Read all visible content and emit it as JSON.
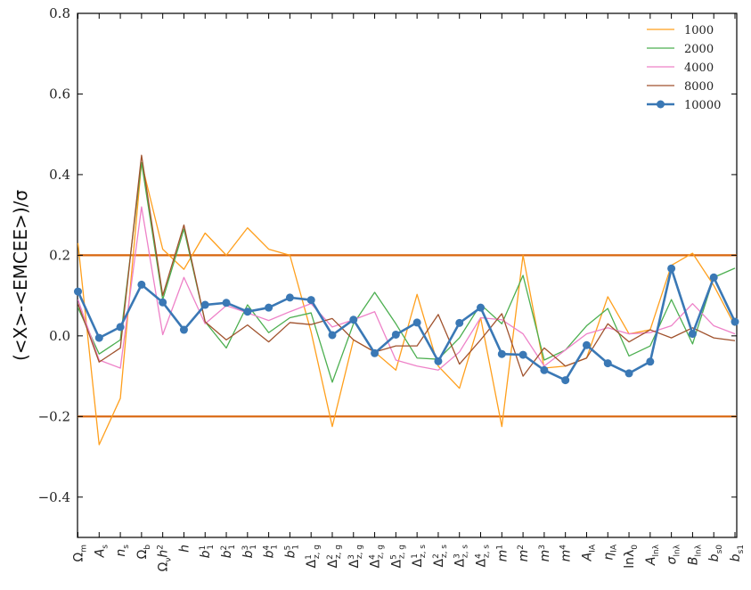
{
  "chart_data": {
    "type": "line",
    "ylabel": "(<X>-<EMCEE>)/σ",
    "ylim": [
      -0.5,
      0.8
    ],
    "yticks": [
      -0.4,
      -0.2,
      0.0,
      0.2,
      0.4,
      0.6,
      0.8
    ],
    "ytick_labels": [
      "−0.4",
      "−0.2",
      "0.0",
      "0.2",
      "0.4",
      "0.6",
      "0.8"
    ],
    "legend_position": "top-right",
    "categories": [
      {
        "base": "Ω",
        "sub": "m",
        "sup": ""
      },
      {
        "base": "A",
        "sub": "s",
        "sup": ""
      },
      {
        "base": "n",
        "sub": "s",
        "sup": ""
      },
      {
        "base": "Ω",
        "sub": "b",
        "sup": ""
      },
      {
        "base": "Ω",
        "sub": "ν",
        "sup": "",
        "suffix": "h",
        "suffix_sup": "2"
      },
      {
        "base": "h",
        "sub": "",
        "sup": ""
      },
      {
        "base": "b",
        "sub": "1",
        "sup": "1"
      },
      {
        "base": "b",
        "sub": "1",
        "sup": "2"
      },
      {
        "base": "b",
        "sub": "1",
        "sup": "3"
      },
      {
        "base": "b",
        "sub": "1",
        "sup": "4"
      },
      {
        "base": "b",
        "sub": "1",
        "sup": "5"
      },
      {
        "base": "Δ",
        "sub": "z, g",
        "sup": "1"
      },
      {
        "base": "Δ",
        "sub": "z, g",
        "sup": "2"
      },
      {
        "base": "Δ",
        "sub": "z, g",
        "sup": "3"
      },
      {
        "base": "Δ",
        "sub": "z, g",
        "sup": "4"
      },
      {
        "base": "Δ",
        "sub": "z, g",
        "sup": "5"
      },
      {
        "base": "Δ",
        "sub": "z, s",
        "sup": "1"
      },
      {
        "base": "Δ",
        "sub": "z, s",
        "sup": "2"
      },
      {
        "base": "Δ",
        "sub": "z, s",
        "sup": "3"
      },
      {
        "base": "Δ",
        "sub": "z, s",
        "sup": "4"
      },
      {
        "base": "m",
        "sub": "",
        "sup": "1"
      },
      {
        "base": "m",
        "sub": "",
        "sup": "2"
      },
      {
        "base": "m",
        "sub": "",
        "sup": "3"
      },
      {
        "base": "m",
        "sub": "",
        "sup": "4"
      },
      {
        "base": "A",
        "sub": "IA",
        "sup": ""
      },
      {
        "base": "η",
        "sub": "IA",
        "sup": ""
      },
      {
        "base": "lnλ",
        "sub": "0",
        "sup": ""
      },
      {
        "base": "A",
        "sub": "lnλ",
        "sup": ""
      },
      {
        "base": "σ",
        "sub": "lnλ",
        "sup": ""
      },
      {
        "base": "B",
        "sub": "lnλ",
        "sup": ""
      },
      {
        "base": "b",
        "sub": "s0",
        "sup": ""
      },
      {
        "base": "b",
        "sub": "s1",
        "sup": ""
      }
    ],
    "hlines": [
      0.2,
      -0.2
    ],
    "hline_color": "#d9650b",
    "series": [
      {
        "name": "1000",
        "color": "#ff9f1c",
        "width": 1.3,
        "markers": false,
        "values": [
          0.23,
          -0.27,
          -0.155,
          0.43,
          0.215,
          0.165,
          0.255,
          0.2,
          0.268,
          0.215,
          0.2,
          0.01,
          -0.225,
          -0.01,
          -0.04,
          -0.085,
          0.103,
          -0.075,
          -0.13,
          0.045,
          -0.225,
          0.2,
          -0.08,
          -0.075,
          -0.055,
          0.097,
          0.005,
          0.015,
          0.175,
          0.205,
          0.125,
          0.025
        ]
      },
      {
        "name": "2000",
        "color": "#4caf50",
        "width": 1.3,
        "markers": false,
        "values": [
          0.07,
          -0.045,
          -0.01,
          0.43,
          0.09,
          0.265,
          0.035,
          -0.03,
          0.077,
          0.008,
          0.045,
          0.057,
          -0.115,
          0.03,
          0.108,
          0.03,
          -0.055,
          -0.058,
          -0.005,
          0.078,
          0.03,
          0.15,
          -0.06,
          -0.035,
          0.025,
          0.068,
          -0.05,
          -0.025,
          0.09,
          -0.02,
          0.145,
          0.168
        ]
      },
      {
        "name": "4000",
        "color": "#ee82c8",
        "width": 1.3,
        "markers": false,
        "values": [
          0.09,
          -0.06,
          -0.08,
          0.32,
          0.003,
          0.145,
          0.03,
          0.075,
          0.057,
          0.038,
          0.06,
          0.08,
          0.022,
          0.04,
          0.06,
          -0.06,
          -0.075,
          -0.085,
          -0.04,
          0.045,
          0.04,
          0.005,
          -0.075,
          -0.035,
          0.005,
          0.02,
          0.005,
          0.008,
          0.025,
          0.08,
          0.025,
          0.005
        ]
      },
      {
        "name": "8000",
        "color": "#a0522d",
        "width": 1.3,
        "markers": false,
        "values": [
          0.08,
          -0.065,
          -0.03,
          0.448,
          0.1,
          0.275,
          0.035,
          -0.01,
          0.027,
          -0.015,
          0.033,
          0.028,
          0.043,
          -0.01,
          -0.04,
          -0.025,
          -0.025,
          0.053,
          -0.07,
          -0.01,
          0.055,
          -0.1,
          -0.03,
          -0.075,
          -0.055,
          0.03,
          -0.015,
          0.015,
          -0.005,
          0.02,
          -0.005,
          -0.012
        ]
      },
      {
        "name": "10000",
        "color": "#3a78b5",
        "width": 2.6,
        "markers": true,
        "values": [
          0.11,
          -0.005,
          0.022,
          0.127,
          0.083,
          0.015,
          0.077,
          0.082,
          0.06,
          0.07,
          0.095,
          0.089,
          0.002,
          0.04,
          -0.043,
          0.003,
          0.033,
          -0.063,
          0.032,
          0.07,
          -0.045,
          -0.047,
          -0.085,
          -0.11,
          -0.023,
          -0.068,
          -0.093,
          -0.064,
          0.167,
          0.005,
          0.145,
          0.035
        ]
      }
    ]
  }
}
